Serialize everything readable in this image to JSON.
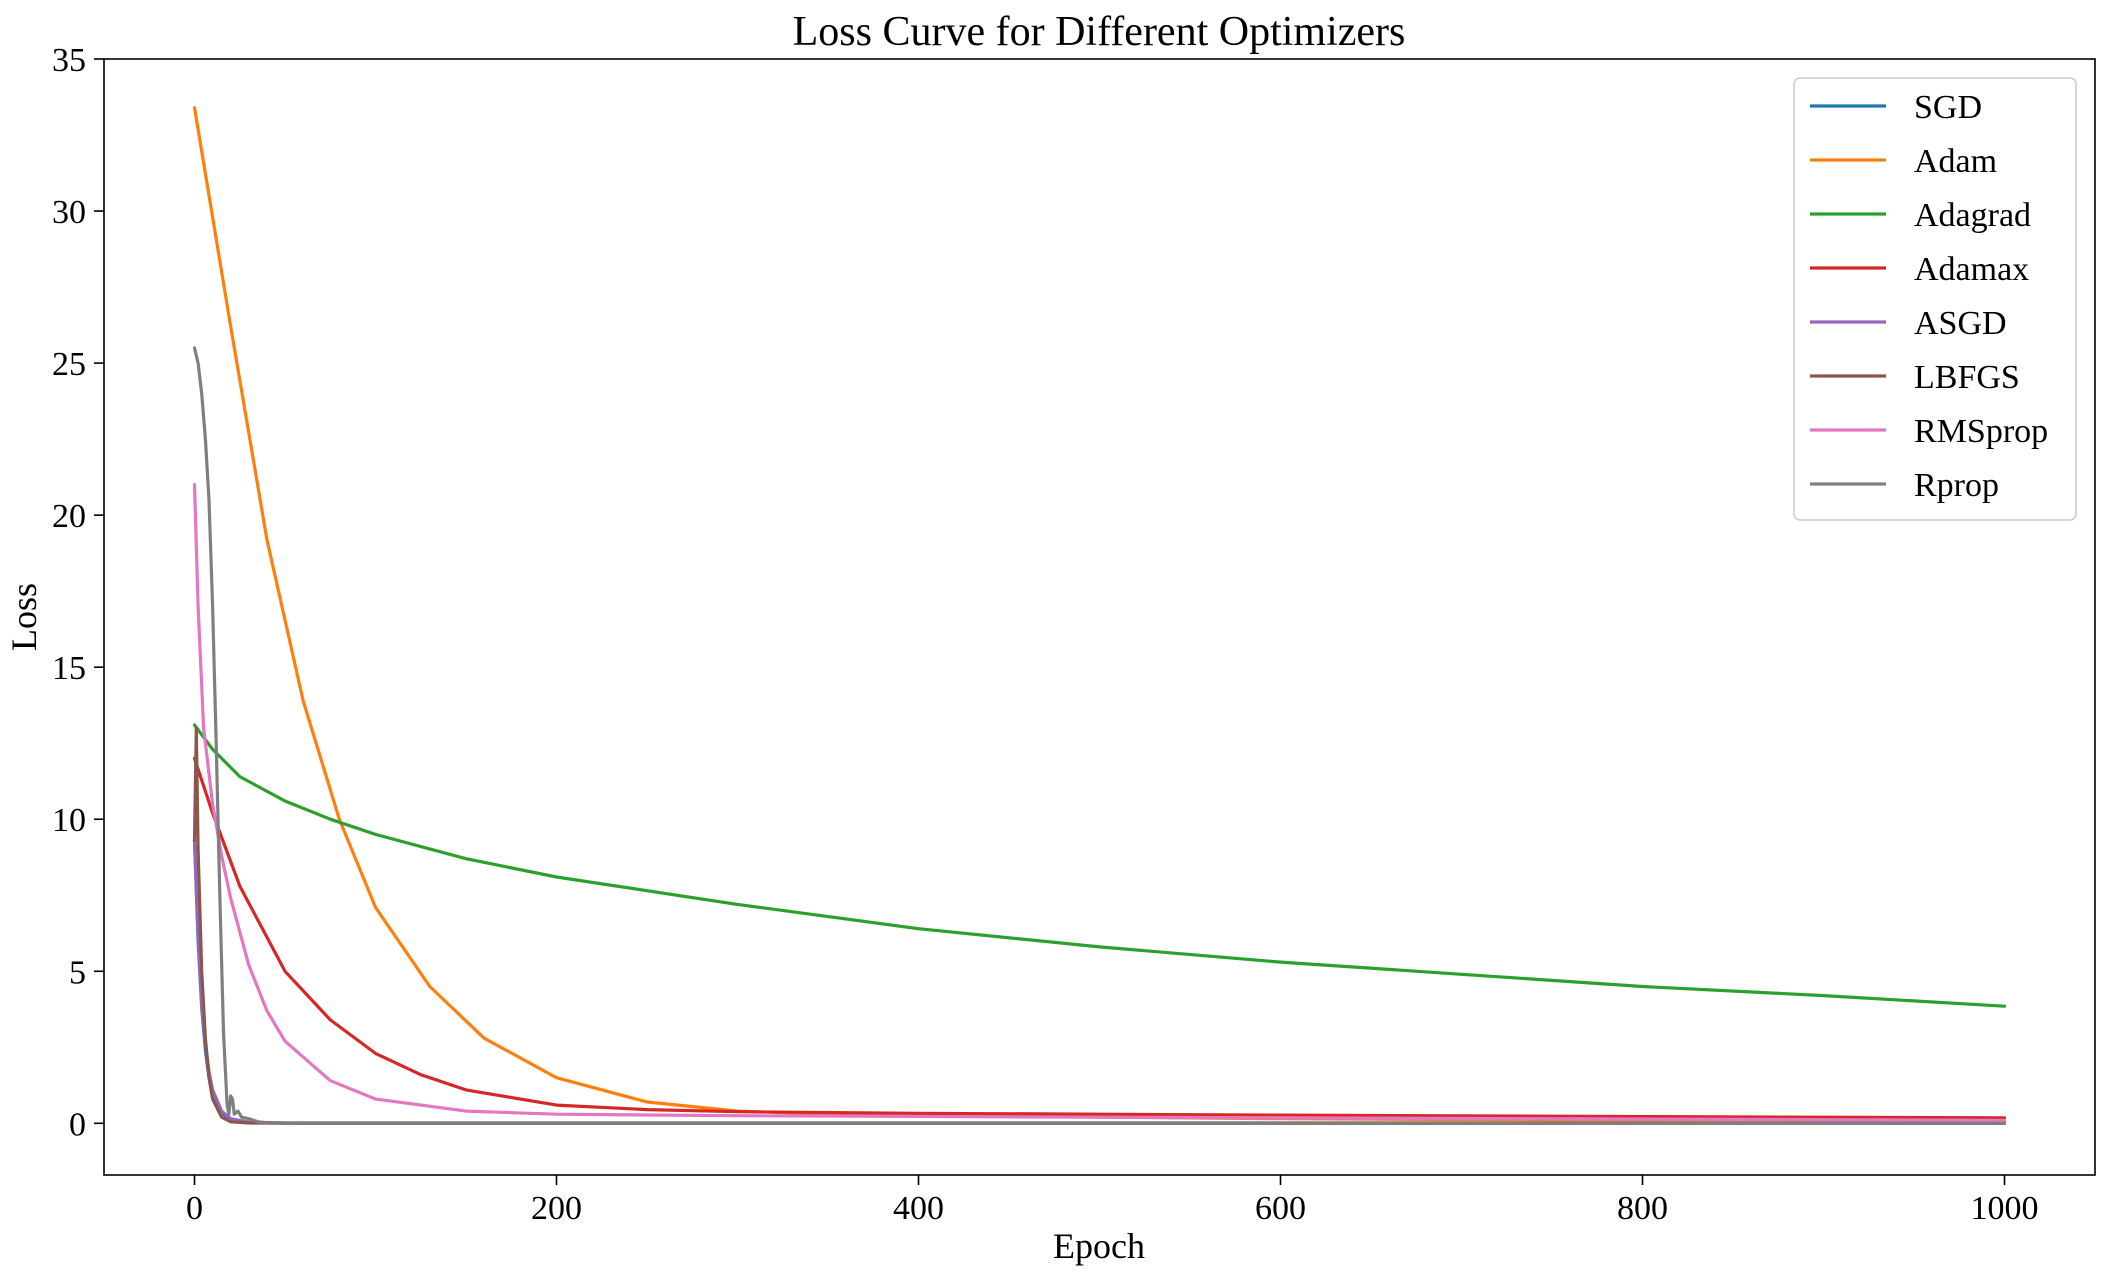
{
  "chart_data": {
    "type": "line",
    "title": "Loss Curve for Different Optimizers",
    "xlabel": "Epoch",
    "ylabel": "Loss",
    "xlim": [
      -50,
      1050
    ],
    "ylim": [
      -1.7,
      35
    ],
    "xticks": [
      0,
      200,
      400,
      600,
      800,
      1000
    ],
    "yticks": [
      0,
      5,
      10,
      15,
      20,
      25,
      30,
      35
    ],
    "grid": false,
    "legend": "top-right",
    "series": [
      {
        "name": "SGD",
        "color": "#1f77b4",
        "x": [
          0,
          2,
          4,
          6,
          8,
          10,
          15,
          20,
          30,
          50,
          100,
          300,
          600,
          1000
        ],
        "y": [
          9.3,
          6.0,
          3.8,
          2.4,
          1.5,
          0.95,
          0.35,
          0.12,
          0.03,
          0.01,
          0.01,
          0.01,
          0.01,
          0.01
        ]
      },
      {
        "name": "Adam",
        "color": "#ff7f0e",
        "x": [
          0,
          20,
          40,
          60,
          80,
          100,
          130,
          160,
          200,
          250,
          300,
          350,
          400,
          500,
          600,
          800,
          1000
        ],
        "y": [
          33.4,
          26.2,
          19.2,
          13.9,
          10.0,
          7.1,
          4.5,
          2.8,
          1.5,
          0.7,
          0.4,
          0.3,
          0.25,
          0.2,
          0.15,
          0.1,
          0.05
        ]
      },
      {
        "name": "Adagrad",
        "color": "#2ca02c",
        "x": [
          0,
          10,
          25,
          50,
          75,
          100,
          150,
          200,
          300,
          400,
          500,
          600,
          700,
          800,
          900,
          1000
        ],
        "y": [
          13.1,
          12.3,
          11.4,
          10.6,
          10.0,
          9.5,
          8.7,
          8.1,
          7.2,
          6.4,
          5.8,
          5.3,
          4.9,
          4.5,
          4.2,
          3.85
        ]
      },
      {
        "name": "Adamax",
        "color": "#d62728",
        "x": [
          0,
          10,
          25,
          50,
          75,
          100,
          125,
          150,
          200,
          250,
          300,
          400,
          500,
          600,
          800,
          1000
        ],
        "y": [
          12.0,
          10.2,
          7.8,
          5.0,
          3.4,
          2.3,
          1.6,
          1.1,
          0.6,
          0.45,
          0.38,
          0.33,
          0.3,
          0.27,
          0.22,
          0.18
        ]
      },
      {
        "name": "ASGD",
        "color": "#9467bd",
        "x": [
          0,
          2,
          4,
          6,
          8,
          10,
          15,
          20,
          30,
          50,
          100,
          300,
          600,
          1000
        ],
        "y": [
          9.3,
          6.2,
          4.0,
          2.6,
          1.7,
          1.1,
          0.4,
          0.15,
          0.04,
          0.01,
          0.01,
          0.01,
          0.01,
          0.01
        ]
      },
      {
        "name": "LBFGS",
        "color": "#8c564b",
        "x": [
          0,
          1,
          2,
          4,
          6,
          8,
          10,
          15,
          20,
          30,
          50,
          100,
          1000
        ],
        "y": [
          9.3,
          13.0,
          9.0,
          5.0,
          2.8,
          1.5,
          0.8,
          0.2,
          0.05,
          0.01,
          0.0,
          0.0,
          0.0
        ]
      },
      {
        "name": "RMSprop",
        "color": "#e377c2",
        "x": [
          0,
          2,
          5,
          10,
          15,
          20,
          30,
          40,
          50,
          75,
          100,
          150,
          200,
          300,
          500,
          1000
        ],
        "y": [
          21.0,
          17.0,
          13.0,
          10.5,
          8.8,
          7.4,
          5.2,
          3.7,
          2.7,
          1.4,
          0.8,
          0.4,
          0.3,
          0.25,
          0.2,
          0.1
        ]
      },
      {
        "name": "Rprop",
        "color": "#7f7f7f",
        "x": [
          0,
          2,
          4,
          6,
          8,
          10,
          12,
          14,
          16,
          18,
          19,
          20,
          21,
          22,
          24,
          26,
          30,
          35,
          40,
          60,
          100,
          1000
        ],
        "y": [
          25.5,
          25.0,
          24.0,
          22.5,
          20.5,
          17.0,
          12.5,
          7.5,
          3.0,
          0.6,
          0.3,
          0.9,
          0.8,
          0.3,
          0.4,
          0.2,
          0.15,
          0.05,
          0.02,
          0.0,
          0.0,
          0.0
        ]
      }
    ]
  }
}
